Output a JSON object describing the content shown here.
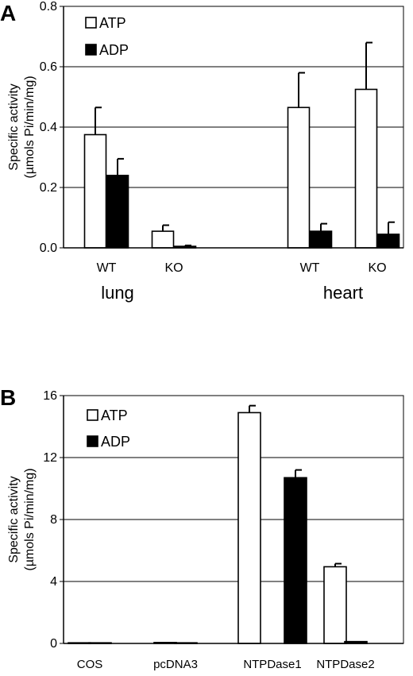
{
  "chart_data": [
    {
      "panel": "A",
      "type": "bar",
      "ylabel_line1": "Specific activity",
      "ylabel_line2": "(µmols Pi/min/mg)",
      "ylim": [
        0,
        0.8
      ],
      "yticks": [
        "0.0",
        "0.2",
        "0.4",
        "0.6",
        "0.8"
      ],
      "categories": [
        "WT",
        "KO",
        "WT",
        "KO"
      ],
      "groups": [
        {
          "label": "lung",
          "categories": [
            "WT",
            "KO"
          ]
        },
        {
          "label": "heart",
          "categories": [
            "WT",
            "KO"
          ]
        }
      ],
      "series": [
        {
          "name": "ATP",
          "color": "#ffffff",
          "values": [
            0.375,
            0.055,
            0.465,
            0.525
          ],
          "errors": [
            0.09,
            0.02,
            0.115,
            0.155
          ]
        },
        {
          "name": "ADP",
          "color": "#000000",
          "values": [
            0.24,
            0.005,
            0.055,
            0.045
          ],
          "errors": [
            0.055,
            0.003,
            0.025,
            0.04
          ]
        }
      ],
      "grid": true,
      "legend_position": "top-left"
    },
    {
      "panel": "B",
      "type": "bar",
      "ylabel_line1": "Specific activity",
      "ylabel_line2": "(µmols Pi/min/mg)",
      "ylim": [
        0,
        16
      ],
      "yticks": [
        "0",
        "4",
        "8",
        "12",
        "16"
      ],
      "categories": [
        "COS",
        "pcDNA3",
        "NTPDase1",
        "NTPDase2"
      ],
      "series": [
        {
          "name": "ATP",
          "color": "#ffffff",
          "values": [
            0.02,
            0.06,
            14.9,
            4.95
          ],
          "errors": [
            0,
            0,
            0.45,
            0.2
          ]
        },
        {
          "name": "ADP",
          "color": "#000000",
          "values": [
            0.02,
            0.03,
            10.7,
            0.12
          ],
          "errors": [
            0,
            0,
            0.5,
            0
          ]
        }
      ],
      "grid": true,
      "legend_position": "top-left"
    }
  ]
}
